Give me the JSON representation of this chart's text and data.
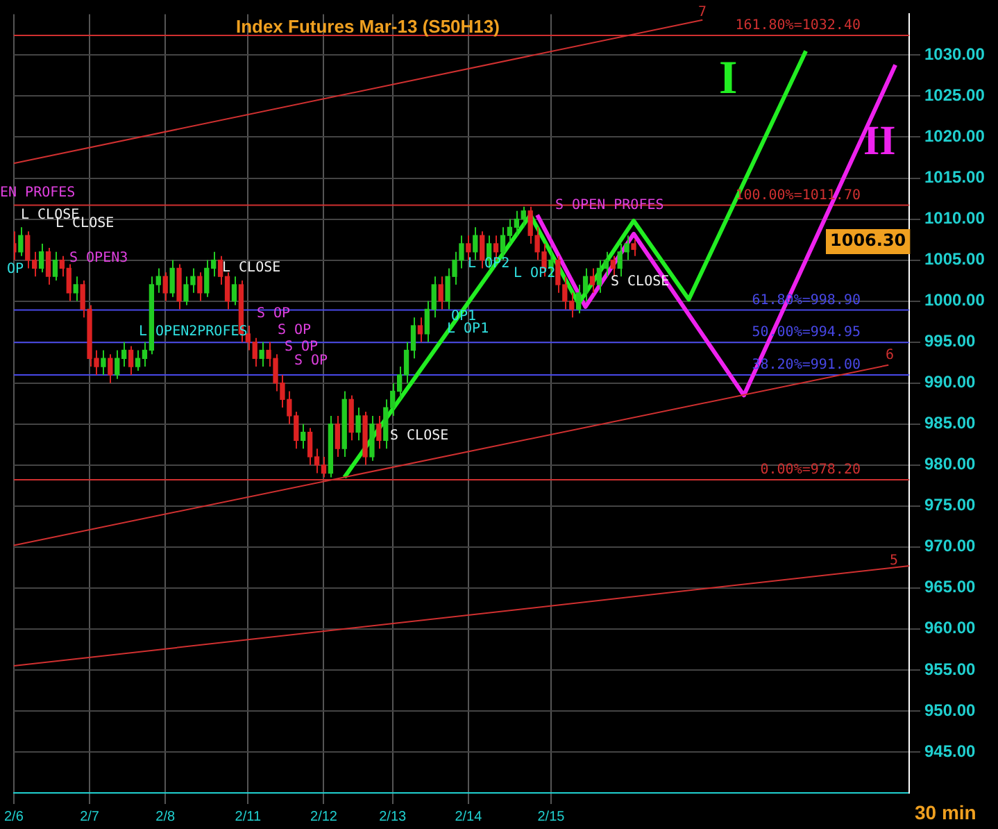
{
  "chart_data": {
    "type": "candlestick",
    "title": "Index Futures Mar-13 (S50H13)",
    "categories": [
      "2/6",
      null,
      null,
      null,
      null,
      null,
      null,
      null,
      null,
      null,
      null,
      "2/7",
      null,
      null,
      null,
      null,
      null,
      null,
      null,
      null,
      null,
      null,
      "2/8",
      null,
      null,
      null,
      null,
      null,
      null,
      null,
      null,
      null,
      null,
      null,
      "2/11",
      null,
      null,
      null,
      null,
      null,
      null,
      null,
      null,
      null,
      null,
      "2/12",
      null,
      null,
      null,
      null,
      null,
      null,
      null,
      null,
      null,
      "2/13",
      null,
      null,
      null,
      null,
      null,
      null,
      null,
      null,
      null,
      null,
      "2/14",
      null,
      null,
      null,
      null,
      null,
      null,
      null,
      null,
      null,
      null,
      null,
      "2/15",
      null,
      null,
      null,
      null,
      null,
      null,
      null,
      null,
      null,
      null,
      null,
      null,
      null,
      null,
      null,
      null,
      null,
      null,
      null,
      null,
      null,
      null,
      null,
      null,
      null,
      null,
      null,
      null,
      null,
      null,
      null,
      null,
      null,
      null,
      null,
      null,
      null,
      null,
      null,
      null,
      null,
      null,
      null,
      null,
      null,
      null,
      null,
      null,
      null,
      null,
      null,
      null
    ],
    "ylim": [
      940,
      1035
    ],
    "yticks": [
      {
        "value": 945,
        "label": "945.00"
      },
      {
        "value": 950,
        "label": "950.00"
      },
      {
        "value": 955,
        "label": "955.00"
      },
      {
        "value": 960,
        "label": "960.00"
      },
      {
        "value": 965,
        "label": "965.00"
      },
      {
        "value": 970,
        "label": "970.00"
      },
      {
        "value": 975,
        "label": "975.00"
      },
      {
        "value": 980,
        "label": "980.00"
      },
      {
        "value": 985,
        "label": "985.00"
      },
      {
        "value": 990,
        "label": "990.00"
      },
      {
        "value": 995,
        "label": "995.00"
      },
      {
        "value": 1000,
        "label": "1000.00"
      },
      {
        "value": 1005,
        "label": "1005.00"
      },
      {
        "value": 1010,
        "label": "1010.00"
      },
      {
        "value": 1015,
        "label": "1015.00"
      },
      {
        "value": 1020,
        "label": "1020.00"
      },
      {
        "value": 1025,
        "label": "1025.00"
      },
      {
        "value": 1030,
        "label": "1030.00"
      }
    ],
    "grid": true,
    "legend": false,
    "series": [
      {
        "ohlc": [
          [
            1007,
            1008.5,
            1005,
            1006
          ],
          [
            1006,
            1009,
            1005.5,
            1008
          ],
          [
            1008,
            1008.5,
            1004,
            1005
          ],
          [
            1005,
            1006,
            1003,
            1004
          ],
          [
            1004,
            1007,
            1003.5,
            1006
          ],
          [
            1006,
            1006.5,
            1002,
            1003
          ],
          [
            1003,
            1006,
            1002.5,
            1005
          ],
          [
            1005,
            1005.5,
            1003,
            1004
          ],
          [
            1004,
            1004.5,
            1000,
            1001
          ],
          [
            1001,
            1003,
            1000,
            1002
          ],
          [
            1002,
            1002.5,
            998,
            999
          ],
          [
            999,
            999.5,
            992,
            993
          ],
          [
            993,
            994,
            991,
            992
          ],
          [
            992,
            994,
            991,
            993
          ],
          [
            993,
            993.5,
            990,
            991
          ],
          [
            991,
            994,
            990.5,
            993
          ],
          [
            993,
            995,
            992,
            994
          ],
          [
            994,
            994.5,
            991,
            992
          ],
          [
            992,
            994,
            991.5,
            993
          ],
          [
            993,
            995,
            992,
            994
          ],
          [
            994,
            1003,
            993.5,
            1002
          ],
          [
            1002,
            1004,
            1001,
            1003
          ],
          [
            1003,
            1003.5,
            1000,
            1001
          ],
          [
            1001,
            1005,
            1000.5,
            1004
          ],
          [
            1004,
            1004.5,
            999,
            1000
          ],
          [
            1000,
            1003,
            999.5,
            1002
          ],
          [
            1002,
            1004,
            1001,
            1003
          ],
          [
            1003,
            1003.5,
            1000,
            1001
          ],
          [
            1001,
            1005,
            1000.5,
            1004
          ],
          [
            1004,
            1006,
            1003,
            1005
          ],
          [
            1005,
            1005.5,
            1002,
            1003
          ],
          [
            1003,
            1003.5,
            999,
            1000
          ],
          [
            1000,
            1003,
            999.5,
            1002
          ],
          [
            1002,
            1002.5,
            995,
            996
          ],
          [
            996,
            997,
            994,
            995
          ],
          [
            995,
            995.5,
            992,
            993
          ],
          [
            993,
            995,
            992,
            994
          ],
          [
            994,
            995,
            992,
            993
          ],
          [
            993,
            993.5,
            989,
            990
          ],
          [
            990,
            991,
            987,
            988
          ],
          [
            988,
            989,
            985,
            986
          ],
          [
            986,
            986.5,
            982,
            983
          ],
          [
            983,
            985,
            982,
            984
          ],
          [
            984,
            984.5,
            980,
            981
          ],
          [
            981,
            982,
            979,
            980
          ],
          [
            980,
            981,
            978.5,
            979
          ],
          [
            979,
            986,
            978.5,
            985
          ],
          [
            985,
            986,
            981,
            982
          ],
          [
            982,
            989,
            981,
            988
          ],
          [
            988,
            988.5,
            983,
            984
          ],
          [
            984,
            987,
            983,
            986
          ],
          [
            986,
            986.5,
            980,
            981
          ],
          [
            981,
            986,
            980.5,
            985
          ],
          [
            985,
            986,
            982,
            983
          ],
          [
            983,
            988,
            982,
            987
          ],
          [
            987,
            990,
            986,
            989
          ],
          [
            989,
            992,
            988,
            991
          ],
          [
            991,
            995,
            990,
            994
          ],
          [
            994,
            998,
            993,
            997
          ],
          [
            997,
            998,
            995,
            996
          ],
          [
            996,
            1000,
            995,
            999
          ],
          [
            999,
            1003,
            998,
            1002
          ],
          [
            1002,
            1003,
            999,
            1000
          ],
          [
            1000,
            1004,
            999,
            1003
          ],
          [
            1003,
            1006,
            1002,
            1005
          ],
          [
            1005,
            1008,
            1004,
            1007
          ],
          [
            1007,
            1008,
            1005,
            1006
          ],
          [
            1006,
            1009,
            1005,
            1008
          ],
          [
            1008,
            1008.5,
            1004,
            1005
          ],
          [
            1005,
            1008,
            1004,
            1007
          ],
          [
            1007,
            1008,
            1005,
            1006
          ],
          [
            1006,
            1009,
            1005,
            1008
          ],
          [
            1008,
            1010,
            1007,
            1009
          ],
          [
            1009,
            1011,
            1008,
            1010
          ],
          [
            1010,
            1011.5,
            1009,
            1011
          ],
          [
            1011,
            1011.5,
            1007,
            1008
          ],
          [
            1008,
            1009,
            1005,
            1006
          ],
          [
            1006,
            1007,
            1003,
            1004
          ],
          [
            1004,
            1006,
            1003,
            1005
          ],
          [
            1005,
            1005.5,
            1001,
            1002
          ],
          [
            1002,
            1003,
            999,
            1000
          ],
          [
            1000,
            1001,
            998,
            999
          ],
          [
            999,
            1002,
            998.5,
            1001
          ],
          [
            1001,
            1004,
            1000,
            1003
          ],
          [
            1003,
            1004,
            1001,
            1002
          ],
          [
            1002,
            1005,
            1001,
            1004
          ],
          [
            1004,
            1006,
            1003,
            1005
          ],
          [
            1005,
            1005.5,
            1003,
            1004
          ],
          [
            1004,
            1007,
            1003,
            1006
          ],
          [
            1006,
            1008,
            1005,
            1007
          ],
          [
            1007,
            1007.5,
            1005.5,
            1006.3
          ],
          null,
          null,
          null,
          null,
          null,
          null,
          null,
          null,
          null,
          null,
          null,
          null,
          null,
          null,
          null,
          null,
          null,
          null,
          null,
          null,
          null,
          null,
          null,
          null,
          null,
          null,
          null,
          null,
          null,
          null,
          null,
          null,
          null,
          null,
          null,
          null,
          null,
          null,
          null,
          null
        ]
      },
      {
        "type": "line",
        "color": "#d03030",
        "values": [
          1016.8,
          null,
          null,
          null,
          null,
          null,
          null,
          null,
          null,
          null,
          null,
          null,
          null,
          null,
          null,
          null,
          null,
          null,
          null,
          null,
          null,
          null,
          null,
          null,
          null,
          null,
          null,
          null,
          null,
          null,
          null,
          null,
          null,
          null,
          null,
          null,
          null,
          null,
          null,
          null,
          null,
          null,
          null,
          null,
          null,
          null,
          null,
          null,
          null,
          null,
          null,
          null,
          null,
          null,
          null,
          null,
          null,
          null,
          null,
          null,
          null,
          null,
          null,
          null,
          null,
          null,
          null,
          null,
          null,
          null,
          null,
          null,
          null,
          null,
          null,
          null,
          null,
          null,
          null,
          null,
          null,
          null,
          null,
          null,
          null,
          null,
          null,
          null,
          null,
          null,
          null,
          null,
          null,
          null,
          null,
          null,
          null,
          null,
          null,
          null,
          1034.3,
          null,
          null,
          null,
          null,
          null,
          null,
          null,
          null,
          null,
          null,
          null,
          null,
          null,
          null,
          null,
          null,
          null,
          null,
          null,
          null,
          null,
          null,
          null,
          null,
          null,
          null,
          null,
          null,
          null,
          null
        ]
      },
      {
        "type": "line",
        "color": "#d03030",
        "values": [
          970.2,
          null,
          null,
          null,
          null,
          null,
          null,
          null,
          null,
          null,
          null,
          null,
          null,
          null,
          null,
          null,
          null,
          null,
          null,
          null,
          null,
          null,
          null,
          null,
          null,
          null,
          null,
          null,
          null,
          null,
          null,
          null,
          null,
          null,
          null,
          null,
          null,
          null,
          null,
          null,
          null,
          null,
          null,
          null,
          null,
          null,
          null,
          null,
          null,
          null,
          null,
          null,
          null,
          null,
          null,
          null,
          null,
          null,
          null,
          null,
          null,
          null,
          null,
          null,
          null,
          null,
          null,
          null,
          null,
          null,
          null,
          null,
          null,
          null,
          null,
          null,
          null,
          null,
          null,
          null,
          null,
          null,
          null,
          null,
          null,
          null,
          null,
          null,
          null,
          null,
          null,
          null,
          null,
          null,
          null,
          null,
          null,
          null,
          null,
          null,
          null,
          null,
          null,
          null,
          null,
          null,
          null,
          null,
          null,
          null,
          null,
          null,
          null,
          null,
          null,
          null,
          null,
          null,
          null,
          null,
          null,
          null,
          null,
          null,
          null,
          null,
          null,
          992.2,
          null,
          null,
          null
        ]
      },
      {
        "type": "line",
        "color": "#d03030",
        "values": [
          955.5,
          null,
          null,
          null,
          null,
          null,
          null,
          null,
          null,
          null,
          null,
          null,
          null,
          null,
          null,
          null,
          null,
          null,
          null,
          null,
          null,
          null,
          null,
          null,
          null,
          null,
          null,
          null,
          null,
          null,
          null,
          null,
          null,
          null,
          null,
          null,
          null,
          null,
          null,
          null,
          null,
          null,
          null,
          null,
          null,
          null,
          null,
          null,
          null,
          null,
          null,
          null,
          null,
          null,
          null,
          null,
          null,
          null,
          null,
          null,
          null,
          null,
          null,
          null,
          null,
          null,
          null,
          null,
          null,
          null,
          null,
          null,
          null,
          null,
          null,
          null,
          null,
          null,
          null,
          null,
          null,
          null,
          null,
          null,
          null,
          null,
          null,
          null,
          null,
          null,
          null,
          null,
          null,
          null,
          null,
          null,
          null,
          null,
          null,
          null,
          null,
          null,
          null,
          null,
          null,
          null,
          null,
          null,
          null,
          null,
          null,
          null,
          null,
          null,
          null,
          null,
          null,
          null,
          null,
          null,
          null,
          null,
          null,
          null,
          null,
          null,
          null,
          null,
          null,
          null,
          967.7
        ]
      },
      {
        "type": "line",
        "color": "#22ee22",
        "values": [
          null,
          null,
          null,
          null,
          null,
          null,
          null,
          null,
          null,
          null,
          null,
          null,
          null,
          null,
          null,
          null,
          null,
          null,
          null,
          null,
          null,
          null,
          null,
          null,
          null,
          null,
          null,
          null,
          null,
          null,
          null,
          null,
          null,
          null,
          null,
          null,
          null,
          null,
          null,
          null,
          null,
          null,
          null,
          null,
          null,
          null,
          null,
          null,
          978.5,
          null,
          null,
          null,
          null,
          null,
          null,
          null,
          null,
          null,
          null,
          null,
          null,
          null,
          null,
          null,
          null,
          null,
          null,
          null,
          null,
          null,
          null,
          null,
          null,
          null,
          null,
          1010.5,
          null,
          null,
          null,
          null,
          null,
          null,
          999.7,
          null,
          null,
          null,
          null,
          null,
          null,
          null,
          1009.8,
          null,
          null,
          null,
          null,
          null,
          null,
          null,
          1000.2,
          null,
          null,
          null,
          null,
          null,
          null,
          null,
          null,
          null,
          null,
          null,
          null,
          null,
          null,
          null,
          null,
          1030.5,
          null,
          null,
          null,
          null,
          null,
          null,
          null,
          null,
          null,
          null,
          null,
          null,
          null,
          null,
          null
        ]
      },
      {
        "type": "line",
        "color": "#ee22ee",
        "values": [
          null,
          null,
          null,
          null,
          null,
          null,
          null,
          null,
          null,
          null,
          null,
          null,
          null,
          null,
          null,
          null,
          null,
          null,
          null,
          null,
          null,
          null,
          null,
          null,
          null,
          null,
          null,
          null,
          null,
          null,
          null,
          null,
          null,
          null,
          null,
          null,
          null,
          null,
          null,
          null,
          null,
          null,
          null,
          null,
          null,
          null,
          null,
          null,
          null,
          null,
          null,
          null,
          null,
          null,
          null,
          null,
          null,
          null,
          null,
          null,
          null,
          null,
          null,
          null,
          null,
          null,
          null,
          null,
          null,
          null,
          null,
          null,
          null,
          null,
          null,
          null,
          1010.5,
          null,
          null,
          null,
          null,
          null,
          null,
          999.3,
          null,
          null,
          null,
          null,
          null,
          null,
          1008.2,
          null,
          null,
          null,
          null,
          null,
          null,
          null,
          null,
          null,
          null,
          null,
          null,
          null,
          null,
          null,
          988.5,
          null,
          null,
          null,
          null,
          null,
          null,
          null,
          null,
          null,
          null,
          null,
          null,
          null,
          null,
          null,
          null,
          null,
          null,
          null,
          null,
          null,
          1028.8,
          null,
          null
        ]
      }
    ],
    "ref_lines": [
      {
        "axis": "y",
        "value": 1032.4,
        "label": "161.80%=1032.40",
        "color": "#d03030"
      },
      {
        "axis": "y",
        "value": 1011.7,
        "label": "100.00%=1011.70",
        "color": "#d03030"
      },
      {
        "axis": "y",
        "value": 998.9,
        "label": "61.80%=998.90",
        "color": "#4848e8"
      },
      {
        "axis": "y",
        "value": 994.95,
        "label": "50.00%=994.95",
        "color": "#4848e8"
      },
      {
        "axis": "y",
        "value": 991,
        "label": "38.20%=991.00",
        "color": "#4848e8"
      },
      {
        "axis": "y",
        "value": 978.2,
        "label": "0.00%=978.20",
        "color": "#d03030"
      }
    ],
    "annotations": [
      "EN PROFES",
      "L CLOSE",
      "L CLOSE",
      "OP",
      "S OPEN3",
      "L OPEN2PROFES",
      "L CLOSE",
      "S OP",
      "S OP",
      "S OP",
      "S OP",
      "S CLOSE",
      "OP1",
      "L OP1",
      "L OP2",
      "L OP2",
      "S OPEN PROFES",
      "S CLOSE",
      "I",
      "II",
      "7",
      "6",
      "5",
      "1006.30",
      "30 min"
    ]
  }
}
